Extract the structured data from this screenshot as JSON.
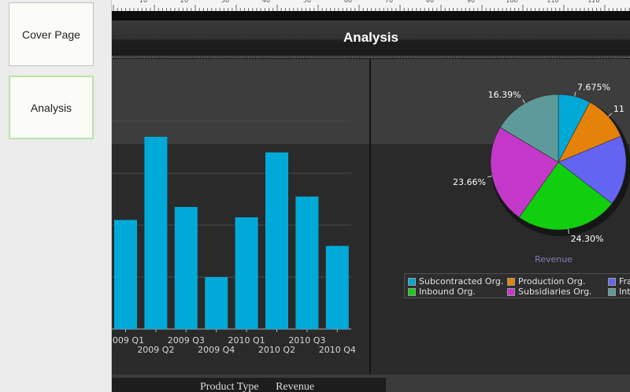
{
  "slides": [
    {
      "label": "Cover Page",
      "selected": false
    },
    {
      "label": "Analysis",
      "selected": true
    }
  ],
  "page": {
    "title": "Analysis"
  },
  "ruler": {
    "labels": [
      "10",
      "20",
      "30",
      "40",
      "50",
      "60",
      "70",
      "80",
      "90",
      "100",
      "110",
      "120"
    ]
  },
  "table": {
    "headers": [
      "Product Type",
      "Revenue"
    ]
  },
  "colors": {
    "bar": "#00aad8",
    "panel_selected_border": "#b6e6a6"
  },
  "chart_data": [
    {
      "type": "bar",
      "title": "",
      "categories": [
        "2009 Q1",
        "2009 Q2",
        "2009 Q3",
        "2009 Q4",
        "2010 Q1",
        "2010 Q2",
        "2010 Q3",
        "2010 Q4"
      ],
      "values": [
        42,
        74,
        47,
        20,
        43,
        68,
        51,
        32
      ],
      "ylim": [
        0,
        100
      ],
      "grid": true,
      "color": "#00aad8"
    },
    {
      "type": "pie",
      "xlabel": "Revenue",
      "slices": [
        {
          "label": "Subcontracted Org.",
          "value": 7.675,
          "label_text": "7.675%",
          "color": "#00a8d6"
        },
        {
          "label": "Production Org.",
          "value": 11.0,
          "label_text": "11",
          "color": "#e4820a"
        },
        {
          "label": "Fra",
          "value": 16.675,
          "label_text": "",
          "color": "#6464f2"
        },
        {
          "label": "Inbound Org.",
          "value": 24.3,
          "label_text": "24.30%",
          "color": "#11cf0f"
        },
        {
          "label": "Subsidiaries Org.",
          "value": 23.66,
          "label_text": "23.66%",
          "color": "#c338c9"
        },
        {
          "label": "Int",
          "value": 16.39,
          "label_text": "16.39%",
          "color": "#5d9a99"
        }
      ],
      "legend": [
        {
          "label": "Subcontracted Org.",
          "color": "#00a8d6"
        },
        {
          "label": "Production Org.",
          "color": "#e4820a"
        },
        {
          "label": "Fra",
          "color": "#6464f2"
        },
        {
          "label": "Inbound Org.",
          "color": "#11cf0f"
        },
        {
          "label": "Subsidiaries Org.",
          "color": "#c338c9"
        },
        {
          "label": "Int",
          "color": "#5d9a99"
        }
      ],
      "legend_position": "bottom"
    }
  ]
}
